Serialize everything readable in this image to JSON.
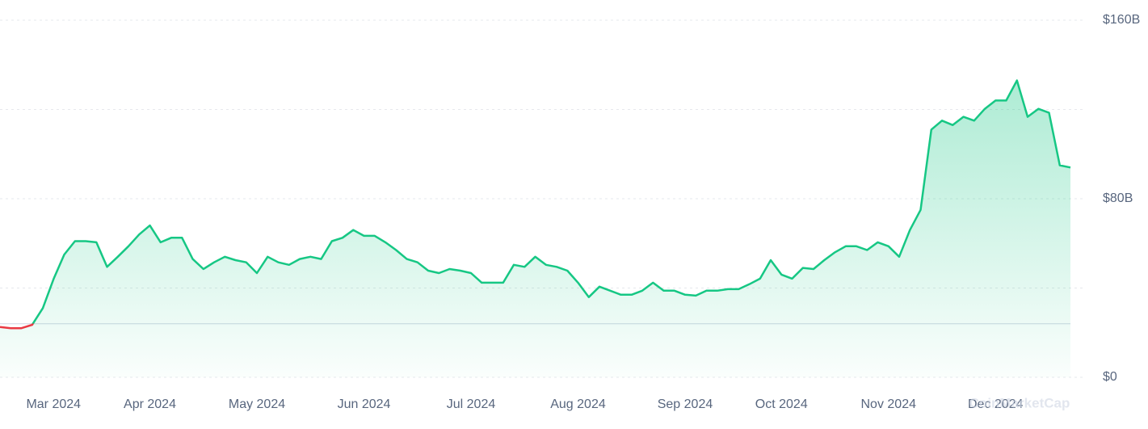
{
  "chart_data": {
    "type": "line",
    "watermark": "CoinMarketCap",
    "categories": [
      null,
      null,
      null,
      null,
      null,
      "Mar 2024",
      null,
      null,
      null,
      null,
      null,
      null,
      null,
      null,
      "Apr 2024",
      null,
      null,
      null,
      null,
      null,
      null,
      null,
      null,
      null,
      "May 2024",
      null,
      null,
      null,
      null,
      null,
      null,
      null,
      null,
      null,
      "Jun 2024",
      null,
      null,
      null,
      null,
      null,
      null,
      null,
      null,
      null,
      "Jul 2024",
      null,
      null,
      null,
      null,
      null,
      null,
      null,
      null,
      null,
      "Aug 2024",
      null,
      null,
      null,
      null,
      null,
      null,
      null,
      null,
      null,
      "Sep 2024",
      null,
      null,
      null,
      null,
      null,
      null,
      null,
      null,
      "Oct 2024",
      null,
      null,
      null,
      null,
      null,
      null,
      null,
      null,
      null,
      "Nov 2024",
      null,
      null,
      null,
      null,
      null,
      null,
      null,
      null,
      null,
      "Dec 2024",
      null,
      null,
      null,
      null,
      null,
      null,
      null
    ],
    "series": [
      {
        "color": "#16c784",
        "below_color": "#ea3943",
        "values": [
          22.5,
          22,
          22,
          23.5,
          31,
          44,
          55,
          61,
          61,
          60.5,
          49.5,
          54,
          58.7,
          64,
          68,
          60.5,
          62.5,
          62.5,
          53,
          48.5,
          51.5,
          54,
          52.5,
          51.5,
          46.7,
          54,
          51.5,
          50.4,
          53,
          54,
          53,
          61,
          62.5,
          66,
          63.4,
          63.4,
          60.5,
          57,
          53,
          51.5,
          47.8,
          46.7,
          48.5,
          47.8,
          46.7,
          42.4,
          42.4,
          42.4,
          50.4,
          49.5,
          54,
          50.4,
          49.5,
          47.8,
          42.4,
          35.9,
          40.6,
          38.8,
          37,
          37,
          38.8,
          42.4,
          38.8,
          38.8,
          37,
          36.6,
          38.8,
          38.8,
          39.5,
          39.5,
          41.7,
          44.2,
          52.5,
          46,
          44.2,
          49,
          48.5,
          52.5,
          56,
          58.7,
          58.7,
          57,
          60.5,
          58.7,
          54,
          66,
          75,
          111,
          115,
          113,
          116.7,
          115,
          120.3,
          124,
          124,
          133,
          116.7,
          120.3,
          118.5,
          95,
          94
        ]
      }
    ],
    "baseline": 24,
    "ylim": [
      0,
      160
    ],
    "yticks": [
      {
        "value": 0,
        "label": "$0"
      },
      {
        "value": 80,
        "label": "$80B"
      },
      {
        "value": 160,
        "label": "$160B"
      }
    ],
    "gridlines": [
      0,
      40,
      80,
      120,
      160
    ],
    "grid": true
  }
}
